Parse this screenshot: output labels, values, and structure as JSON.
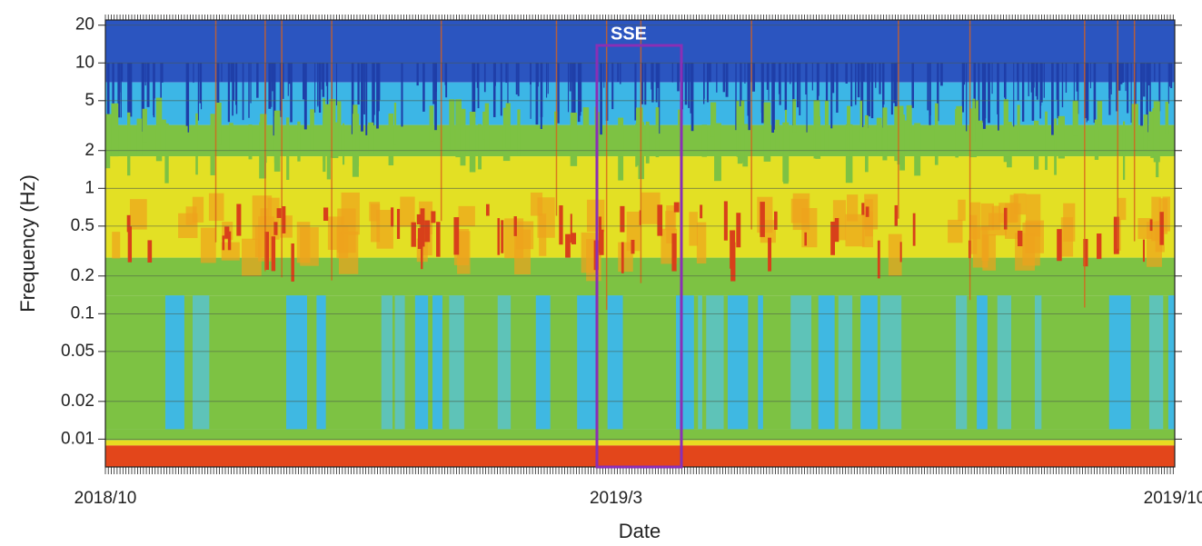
{
  "chart_data": {
    "type": "spectrogram",
    "y_label": "Frequency (Hz)",
    "x_label": "Date",
    "y_log": true,
    "ylim": [
      0.006,
      22
    ],
    "yticks": [
      0.01,
      0.02,
      0.05,
      0.1,
      0.2,
      0.5,
      1,
      2,
      5,
      10,
      20
    ],
    "x_tick_labels": [
      "2018/10",
      "2019/3",
      "2019/10"
    ],
    "annotation": "SSE",
    "annotation_color": "#8a2fb5",
    "grid": true
  }
}
